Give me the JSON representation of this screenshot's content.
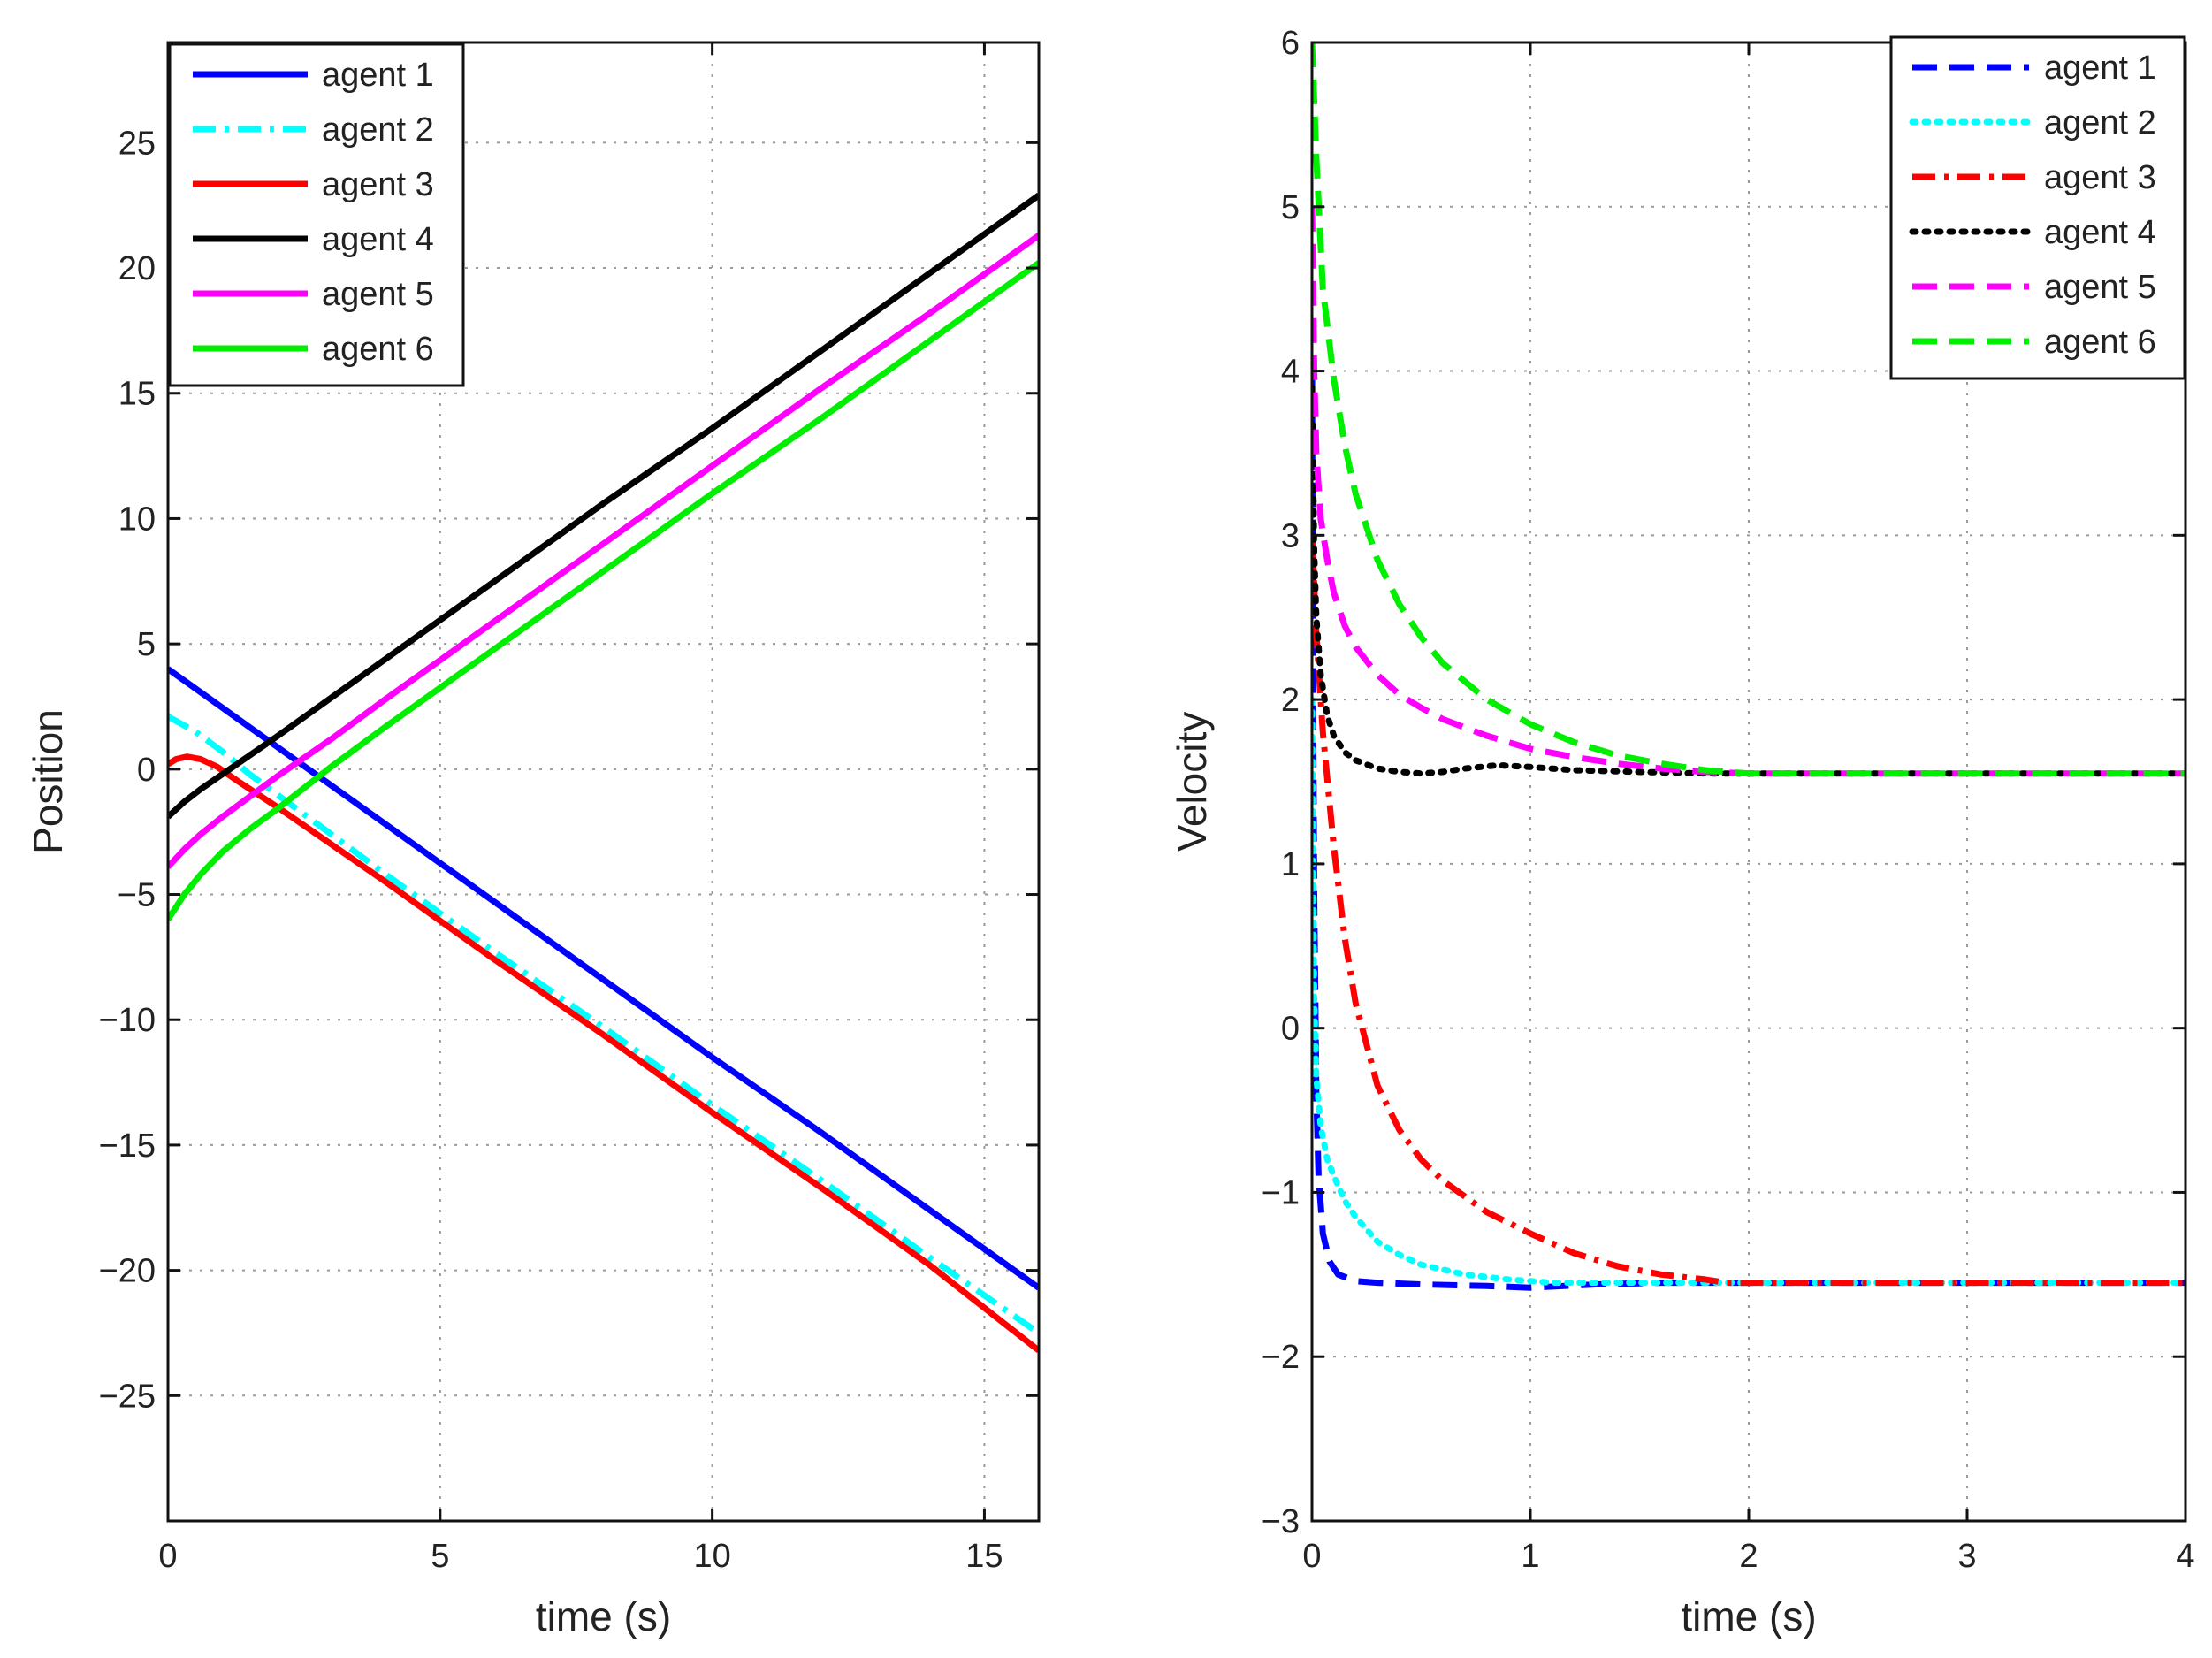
{
  "chart_data": [
    {
      "type": "line",
      "xlabel": "time (s)",
      "ylabel": "Position",
      "xlim": [
        0,
        16
      ],
      "ylim": [
        -30,
        29
      ],
      "xticks": [
        0,
        5,
        10,
        15
      ],
      "yticks": [
        -25,
        -20,
        -15,
        -10,
        -5,
        0,
        5,
        10,
        15,
        20,
        25
      ],
      "grid": true,
      "legend_position": "top-left",
      "series": [
        {
          "name": "agent 1",
          "color": "#0000ff",
          "style": "solid",
          "x": [
            0,
            2,
            4,
            6,
            8,
            10,
            12,
            14,
            16
          ],
          "y": [
            4.0,
            0.9,
            -2.2,
            -5.3,
            -8.4,
            -11.5,
            -14.5,
            -17.6,
            -20.7
          ]
        },
        {
          "name": "agent 2",
          "color": "#00ffff",
          "style": "dashdot",
          "x": [
            0,
            0.5,
            1,
            1.5,
            2,
            3,
            4,
            6,
            8,
            10,
            12,
            14,
            16
          ],
          "y": [
            2.1,
            1.5,
            0.7,
            -0.2,
            -1.0,
            -2.6,
            -4.2,
            -7.3,
            -10.3,
            -13.4,
            -16.4,
            -19.5,
            -22.5
          ]
        },
        {
          "name": "agent 3",
          "color": "#ff0000",
          "style": "solid",
          "x": [
            0,
            0.15,
            0.35,
            0.6,
            0.9,
            1.3,
            2,
            3,
            4,
            6,
            8,
            10,
            12,
            14,
            16
          ],
          "y": [
            0.2,
            0.4,
            0.5,
            0.4,
            0.1,
            -0.5,
            -1.5,
            -3.0,
            -4.5,
            -7.6,
            -10.6,
            -13.7,
            -16.7,
            -19.8,
            -23.2
          ]
        },
        {
          "name": "agent 4",
          "color": "#000000",
          "style": "solid",
          "x": [
            0,
            0.3,
            0.6,
            1,
            2,
            4,
            6,
            8,
            10,
            12,
            14,
            16
          ],
          "y": [
            -1.9,
            -1.3,
            -0.8,
            -0.2,
            1.3,
            4.4,
            7.5,
            10.6,
            13.6,
            16.7,
            19.8,
            22.9
          ]
        },
        {
          "name": "agent 5",
          "color": "#ff00ff",
          "style": "solid",
          "x": [
            0,
            0.3,
            0.6,
            1,
            1.5,
            2,
            3,
            4,
            6,
            8,
            10,
            12,
            14,
            16
          ],
          "y": [
            -3.9,
            -3.2,
            -2.6,
            -1.9,
            -1.1,
            -0.3,
            1.2,
            2.8,
            5.9,
            9.0,
            12.1,
            15.2,
            18.2,
            21.3
          ]
        },
        {
          "name": "agent 6",
          "color": "#00ee00",
          "style": "solid",
          "x": [
            0,
            0.3,
            0.6,
            1,
            1.5,
            2,
            3,
            4,
            6,
            8,
            10,
            12,
            14,
            16
          ],
          "y": [
            -6.0,
            -5.0,
            -4.2,
            -3.3,
            -2.4,
            -1.6,
            0.1,
            1.7,
            4.8,
            7.9,
            11.0,
            14.0,
            17.1,
            20.2
          ]
        }
      ]
    },
    {
      "type": "line",
      "xlabel": "time (s)",
      "ylabel": "Velocity",
      "xlim": [
        0,
        4
      ],
      "ylim": [
        -3,
        6
      ],
      "xticks": [
        0,
        1,
        2,
        3,
        4
      ],
      "yticks": [
        -3,
        -2,
        -1,
        0,
        1,
        2,
        3,
        4,
        5,
        6
      ],
      "grid": true,
      "legend_position": "top-right",
      "series": [
        {
          "name": "agent 1",
          "color": "#0000ff",
          "style": "dashed",
          "x": [
            0,
            0.005,
            0.01,
            0.02,
            0.03,
            0.05,
            0.08,
            0.12,
            0.2,
            0.3,
            0.5,
            0.8,
            1.0,
            1.3,
            1.6,
            2.0,
            3.0,
            4.0
          ],
          "y": [
            4.0,
            2.0,
            0.8,
            -0.4,
            -0.9,
            -1.25,
            -1.42,
            -1.5,
            -1.54,
            -1.55,
            -1.56,
            -1.57,
            -1.58,
            -1.56,
            -1.55,
            -1.55,
            -1.55,
            -1.55
          ]
        },
        {
          "name": "agent 2",
          "color": "#00ffff",
          "style": "dotted",
          "x": [
            0,
            0.005,
            0.01,
            0.02,
            0.04,
            0.07,
            0.1,
            0.15,
            0.2,
            0.3,
            0.4,
            0.5,
            0.7,
            0.9,
            1.1,
            1.3,
            1.6,
            2.0,
            3.0,
            4.0
          ],
          "y": [
            2.0,
            1.0,
            0.2,
            -0.3,
            -0.6,
            -0.8,
            -0.9,
            -1.05,
            -1.15,
            -1.3,
            -1.38,
            -1.44,
            -1.5,
            -1.53,
            -1.55,
            -1.55,
            -1.55,
            -1.55,
            -1.55,
            -1.55
          ]
        },
        {
          "name": "agent 3",
          "color": "#ff0000",
          "style": "dashdot",
          "x": [
            0,
            0.02,
            0.05,
            0.1,
            0.15,
            0.2,
            0.3,
            0.4,
            0.5,
            0.6,
            0.8,
            1.0,
            1.2,
            1.4,
            1.6,
            1.8,
            1.9,
            2.0,
            3.0,
            4.0
          ],
          "y": [
            3.0,
            2.4,
            1.8,
            1.1,
            0.55,
            0.15,
            -0.35,
            -0.62,
            -0.8,
            -0.93,
            -1.12,
            -1.25,
            -1.37,
            -1.45,
            -1.5,
            -1.53,
            -1.55,
            -1.55,
            -1.55,
            -1.55
          ]
        },
        {
          "name": "agent 4",
          "color": "#000000",
          "style": "dotted",
          "x": [
            0,
            0.01,
            0.02,
            0.04,
            0.07,
            0.1,
            0.15,
            0.2,
            0.3,
            0.4,
            0.5,
            0.6,
            0.7,
            0.85,
            1.0,
            1.2,
            1.5,
            1.8,
            2.0,
            3.0,
            4.0
          ],
          "y": [
            3.9,
            2.9,
            2.5,
            2.15,
            1.9,
            1.78,
            1.68,
            1.63,
            1.58,
            1.56,
            1.55,
            1.56,
            1.58,
            1.6,
            1.59,
            1.57,
            1.56,
            1.55,
            1.55,
            1.55,
            1.55
          ]
        },
        {
          "name": "agent 5",
          "color": "#ff00ff",
          "style": "dashed",
          "x": [
            0,
            0.01,
            0.02,
            0.04,
            0.07,
            0.1,
            0.15,
            0.2,
            0.3,
            0.4,
            0.5,
            0.6,
            0.8,
            1.0,
            1.2,
            1.4,
            1.6,
            1.8,
            2.0,
            3.0,
            4.0
          ],
          "y": [
            5.0,
            4.0,
            3.5,
            3.1,
            2.85,
            2.65,
            2.45,
            2.32,
            2.15,
            2.03,
            1.95,
            1.88,
            1.78,
            1.7,
            1.65,
            1.61,
            1.58,
            1.56,
            1.55,
            1.55,
            1.55
          ]
        },
        {
          "name": "agent 6",
          "color": "#00ee00",
          "style": "dashed",
          "x": [
            0,
            0.02,
            0.05,
            0.1,
            0.15,
            0.2,
            0.3,
            0.4,
            0.5,
            0.6,
            0.8,
            1.0,
            1.2,
            1.4,
            1.6,
            1.8,
            1.9,
            2.0,
            3.0,
            4.0
          ],
          "y": [
            6.0,
            5.3,
            4.5,
            3.95,
            3.55,
            3.25,
            2.85,
            2.58,
            2.38,
            2.22,
            2.0,
            1.85,
            1.74,
            1.66,
            1.61,
            1.57,
            1.56,
            1.55,
            1.55,
            1.55
          ]
        }
      ]
    }
  ]
}
